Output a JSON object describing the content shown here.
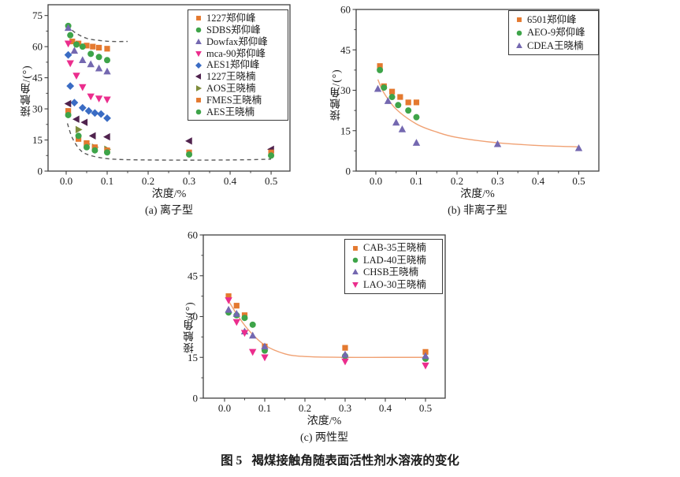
{
  "figure_caption": {
    "label": "图 5",
    "text": "褐煤接触角随表面活性剂水溶液的变化"
  },
  "colors": {
    "orange": "#E4792F",
    "green": "#3EA449",
    "purple": "#7468B0",
    "magenta": "#EB2D8D",
    "blue": "#3A6CC4",
    "plum": "#50234E",
    "olive": "#7E8C3B",
    "fit_curve": "#F0A173",
    "dashed_curve": "#5A5A5A",
    "axis": "#404040",
    "text": "#1C1C1C"
  },
  "chart_data": [
    {
      "type": "scatter",
      "title": "(a) 离子型",
      "xlabel": "浓度/%",
      "ylabel": "接触角/(°)",
      "xlim": [
        -0.0442,
        0.546
      ],
      "ylim": [
        0,
        80.2
      ],
      "xticks": [
        0,
        0.1,
        0.2,
        0.3,
        0.4,
        0.5
      ],
      "xtick_labels": [
        "0.0",
        "0.1",
        "0.2",
        "0.3",
        "0.4",
        "0.5"
      ],
      "yticks": [
        0,
        15,
        30,
        45,
        60,
        75
      ],
      "ytick_labels": [
        "0",
        "15",
        "30",
        "45",
        "60",
        "75"
      ],
      "x_minor": [
        0.05,
        0.15,
        0.25,
        0.35,
        0.45
      ],
      "y_minor": [
        7.5,
        22.5,
        37.5,
        52.5,
        67.5
      ],
      "grid": false,
      "legend_position": "top-right",
      "series": [
        {
          "name": "1227郑仰峰",
          "marker": "square",
          "color": "#E4792F",
          "x": [
            0.015,
            0.03,
            0.05,
            0.065,
            0.08,
            0.1
          ],
          "y": [
            62.5,
            61.5,
            60.5,
            60,
            59.5,
            59
          ]
        },
        {
          "name": "SDBS郑仰峰",
          "marker": "circle",
          "color": "#3EA449",
          "x": [
            0.005,
            0.01,
            0.025,
            0.04,
            0.06,
            0.08,
            0.1
          ],
          "y": [
            70,
            65.5,
            61,
            60,
            56.5,
            55,
            53.5
          ]
        },
        {
          "name": "Dowfax郑仰峰",
          "marker": "triangle-up",
          "color": "#7468B0",
          "x": [
            0.005,
            0.02,
            0.04,
            0.06,
            0.08,
            0.1
          ],
          "y": [
            69,
            58,
            53.5,
            51.5,
            49.5,
            48
          ]
        },
        {
          "name": "mca-90郑仰峰",
          "marker": "triangle-down",
          "color": "#EB2D8D",
          "x": [
            0.005,
            0.01,
            0.025,
            0.04,
            0.06,
            0.08,
            0.1
          ],
          "y": [
            61.5,
            52,
            46,
            40.5,
            36,
            35,
            34.5
          ]
        },
        {
          "name": "AES1郑仰峰",
          "marker": "diamond",
          "color": "#3A6CC4",
          "x": [
            0.005,
            0.01,
            0.02,
            0.04,
            0.055,
            0.07,
            0.085,
            0.1
          ],
          "y": [
            56,
            41,
            33,
            30.5,
            29,
            28,
            27.5,
            25.5
          ]
        },
        {
          "name": "1227王晓楠",
          "marker": "triangle-left",
          "color": "#50234E",
          "x": [
            0.005,
            0.025,
            0.045,
            0.065,
            0.1,
            0.3,
            0.5
          ],
          "y": [
            32.5,
            25,
            23.5,
            17,
            16.5,
            14.5,
            10.5
          ]
        },
        {
          "name": "AOS王晓楠",
          "marker": "triangle-right",
          "color": "#7E8C3B",
          "x": [
            0.03,
            0.05,
            0.07,
            0.1
          ],
          "y": [
            20,
            13,
            11.5,
            10.5
          ]
        },
        {
          "name": "FMES王晓楠",
          "marker": "square",
          "color": "#E4792F",
          "x": [
            0.005,
            0.03,
            0.05,
            0.07,
            0.1,
            0.3,
            0.5
          ],
          "y": [
            29,
            15.5,
            13.5,
            11.5,
            10,
            9,
            9
          ]
        },
        {
          "name": "AES王晓楠",
          "marker": "circle",
          "color": "#3EA449",
          "x": [
            0.005,
            0.03,
            0.05,
            0.07,
            0.1,
            0.3,
            0.5
          ],
          "y": [
            27,
            17,
            11.5,
            10,
            9,
            8,
            7.5
          ]
        }
      ],
      "curves": [
        {
          "name": "upper-envelope",
          "style": "dashed",
          "color": "#5A5A5A",
          "points": [
            [
              0.003,
              70.5
            ],
            [
              0.02,
              67
            ],
            [
              0.05,
              64
            ],
            [
              0.08,
              63
            ],
            [
              0.11,
              62.5
            ],
            [
              0.15,
              62.5
            ]
          ]
        },
        {
          "name": "lower-envelope",
          "style": "dashed",
          "color": "#5A5A5A",
          "points": [
            [
              0.003,
              23
            ],
            [
              0.015,
              16
            ],
            [
              0.035,
              10
            ],
            [
              0.06,
              7.5
            ],
            [
              0.1,
              6
            ],
            [
              0.15,
              5.5
            ],
            [
              0.25,
              5.3
            ],
            [
              0.35,
              5.3
            ],
            [
              0.45,
              5.5
            ],
            [
              0.5,
              5.8
            ]
          ]
        }
      ]
    },
    {
      "type": "scatter",
      "title": "(b) 非离子型",
      "xlabel": "浓度/%",
      "ylabel": "接触角/(°)",
      "xlim": [
        -0.0485,
        0.5495
      ],
      "ylim": [
        0,
        60
      ],
      "xticks": [
        0,
        0.1,
        0.2,
        0.3,
        0.4,
        0.5
      ],
      "xtick_labels": [
        "0.0",
        "0.1",
        "0.2",
        "0.3",
        "0.4",
        "0.5"
      ],
      "yticks": [
        0,
        15,
        30,
        45,
        60
      ],
      "ytick_labels": [
        "0",
        "15",
        "30",
        "45",
        "60"
      ],
      "x_minor": [
        0.05,
        0.15,
        0.25,
        0.35,
        0.45
      ],
      "y_minor": [
        7.5,
        22.5,
        37.5,
        52.5
      ],
      "grid": false,
      "legend_position": "top-right",
      "series": [
        {
          "name": "6501郑仰峰",
          "marker": "square",
          "color": "#E4792F",
          "x": [
            0.01,
            0.02,
            0.04,
            0.06,
            0.08,
            0.1
          ],
          "y": [
            39,
            31.5,
            29.5,
            27.5,
            25.5,
            25.5
          ]
        },
        {
          "name": "AEO-9郑仰峰",
          "marker": "circle",
          "color": "#3EA449",
          "x": [
            0.01,
            0.02,
            0.04,
            0.055,
            0.08,
            0.1
          ],
          "y": [
            37.5,
            31,
            27.5,
            24.5,
            22.5,
            20
          ]
        },
        {
          "name": "CDEA王晓楠",
          "marker": "triangle-up",
          "color": "#7468B0",
          "x": [
            0.005,
            0.03,
            0.05,
            0.065,
            0.1,
            0.3,
            0.5
          ],
          "y": [
            30.5,
            26,
            18,
            15.5,
            10.5,
            10,
            8.5
          ]
        }
      ],
      "curves": [
        {
          "name": "fit-curve",
          "style": "solid",
          "color": "#F0A173",
          "points": [
            [
              0.005,
              34
            ],
            [
              0.02,
              29
            ],
            [
              0.05,
              23
            ],
            [
              0.1,
              17.5
            ],
            [
              0.15,
              14.5
            ],
            [
              0.2,
              12.5
            ],
            [
              0.3,
              10.5
            ],
            [
              0.4,
              9.5
            ],
            [
              0.5,
              9
            ]
          ]
        }
      ]
    },
    {
      "type": "scatter",
      "title": "(c) 两性型",
      "xlabel": "浓度/%",
      "ylabel": "接触角/(°)",
      "xlim": [
        -0.0529,
        0.549
      ],
      "ylim": [
        0,
        60
      ],
      "xticks": [
        0,
        0.1,
        0.2,
        0.3,
        0.4,
        0.5
      ],
      "xtick_labels": [
        "0.0",
        "0.1",
        "0.2",
        "0.3",
        "0.4",
        "0.5"
      ],
      "yticks": [
        0,
        15,
        30,
        45,
        60
      ],
      "ytick_labels": [
        "0",
        "15",
        "30",
        "45",
        "60"
      ],
      "x_minor": [
        0.05,
        0.15,
        0.25,
        0.35,
        0.45
      ],
      "y_minor": [
        7.5,
        22.5,
        37.5,
        52.5
      ],
      "grid": false,
      "legend_position": "top-right",
      "series": [
        {
          "name": "CAB-35王晓楠",
          "marker": "square",
          "color": "#E4792F",
          "x": [
            0.01,
            0.03,
            0.05,
            0.1,
            0.3,
            0.5
          ],
          "y": [
            37.5,
            34,
            30.5,
            19,
            18.5,
            17
          ]
        },
        {
          "name": "LAD-40王晓楠",
          "marker": "circle",
          "color": "#3EA449",
          "x": [
            0.01,
            0.03,
            0.05,
            0.07,
            0.1,
            0.3,
            0.5
          ],
          "y": [
            31.5,
            30.5,
            29.5,
            27,
            17.5,
            15.5,
            14.5
          ]
        },
        {
          "name": "CHSB王晓楠",
          "marker": "triangle-up",
          "color": "#7468B0",
          "x": [
            0.01,
            0.03,
            0.05,
            0.07,
            0.1,
            0.3,
            0.5
          ],
          "y": [
            32.5,
            31,
            24.5,
            23,
            19,
            16,
            15.5
          ]
        },
        {
          "name": "LAO-30王晓楠",
          "marker": "triangle-down",
          "color": "#EB2D8D",
          "x": [
            0.01,
            0.03,
            0.05,
            0.07,
            0.1,
            0.3,
            0.5
          ],
          "y": [
            36,
            28,
            24,
            17,
            15,
            13.5,
            12
          ]
        }
      ],
      "curves": [
        {
          "name": "fit-curve",
          "style": "solid",
          "color": "#F0A173",
          "points": [
            [
              0.005,
              37
            ],
            [
              0.03,
              31
            ],
            [
              0.06,
              25
            ],
            [
              0.1,
              19.5
            ],
            [
              0.15,
              16.3
            ],
            [
              0.2,
              15.3
            ],
            [
              0.3,
              15
            ],
            [
              0.4,
              15
            ],
            [
              0.5,
              15
            ]
          ]
        }
      ]
    }
  ]
}
